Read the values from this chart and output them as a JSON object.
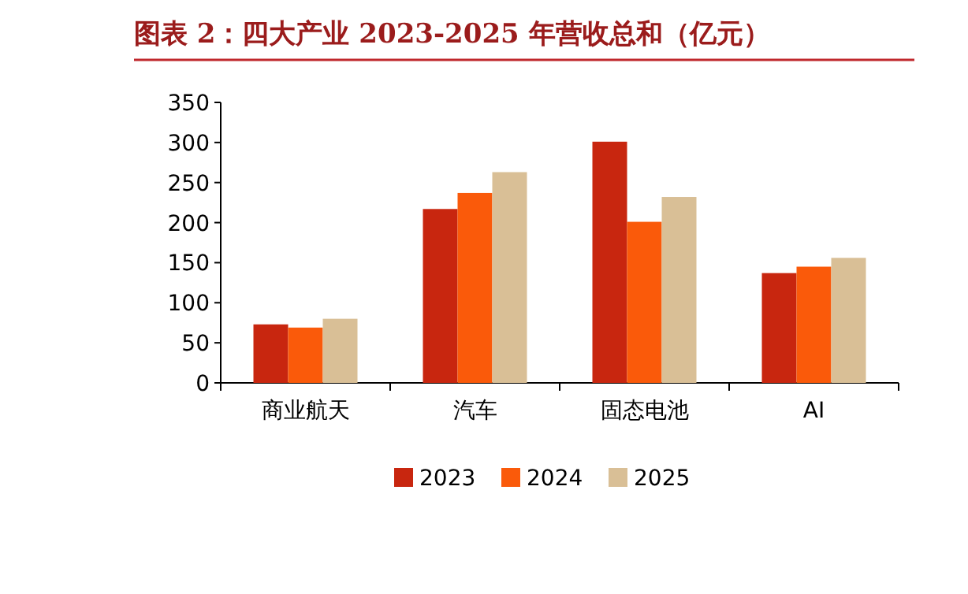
{
  "chart_data": {
    "type": "bar",
    "title": "图表 2：四大产业 2023-2025 年营收总和（亿元）",
    "categories": [
      "商业航天",
      "汽车",
      "固态电池",
      "AI"
    ],
    "series": [
      {
        "name": "2023",
        "color": "#c8260f",
        "values": [
          73,
          217,
          301,
          137
        ]
      },
      {
        "name": "2024",
        "color": "#fa5a0a",
        "values": [
          69,
          237,
          201,
          145
        ]
      },
      {
        "name": "2025",
        "color": "#d9bf96",
        "values": [
          80,
          263,
          232,
          156
        ]
      }
    ],
    "ylim": [
      0,
      350
    ],
    "yticks": [
      0,
      50,
      100,
      150,
      200,
      250,
      300,
      350
    ],
    "legend": "bottom"
  }
}
